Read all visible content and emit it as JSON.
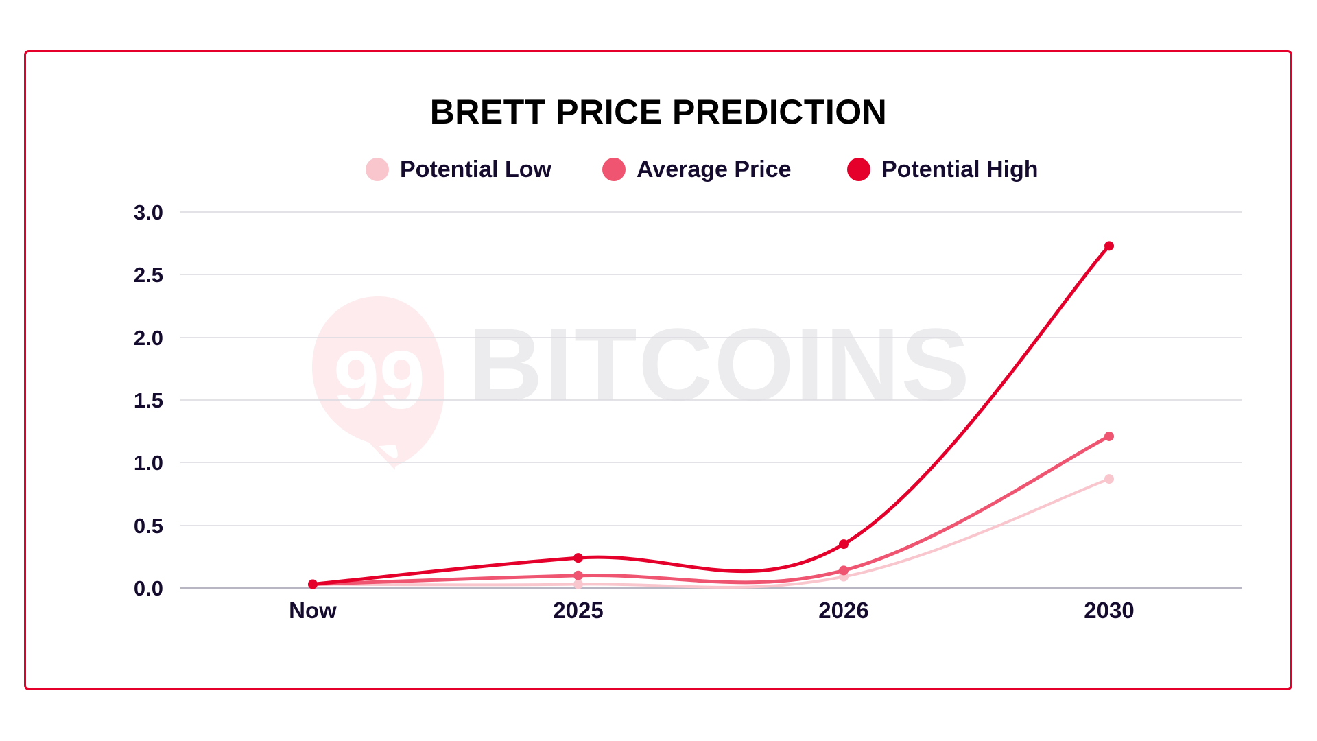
{
  "title": "BRETT PRICE PREDICTION",
  "watermark": {
    "mark": "99",
    "text": "BITCOINS"
  },
  "legend": [
    {
      "label": "Potential Low",
      "color": "#F9C6CE"
    },
    {
      "label": "Average Price",
      "color": "#EF5470"
    },
    {
      "label": "Potential High",
      "color": "#E4002B"
    }
  ],
  "colors": {
    "border": "#E4002B",
    "text": "#150B2E",
    "grid": "#D9D9DF",
    "baseline": "#B8B6C2"
  },
  "chart_data": {
    "type": "line",
    "title": "BRETT PRICE PREDICTION",
    "xlabel": "",
    "ylabel": "",
    "categories": [
      "Now",
      "2025",
      "2026",
      "2030"
    ],
    "series": [
      {
        "name": "Potential Low",
        "color": "#F9C6CE",
        "values": [
          0.03,
          0.03,
          0.09,
          0.87
        ]
      },
      {
        "name": "Average Price",
        "color": "#EF5470",
        "values": [
          0.03,
          0.1,
          0.14,
          1.21
        ]
      },
      {
        "name": "Potential High",
        "color": "#E4002B",
        "values": [
          0.03,
          0.24,
          0.35,
          2.73
        ]
      }
    ],
    "yticks": [
      "0.0",
      "0.5",
      "1.0",
      "1.5",
      "2.0",
      "2.5",
      "3.0"
    ],
    "ylim": [
      0,
      3.0
    ],
    "grid": true,
    "smooth": true,
    "legend_position": "top"
  }
}
